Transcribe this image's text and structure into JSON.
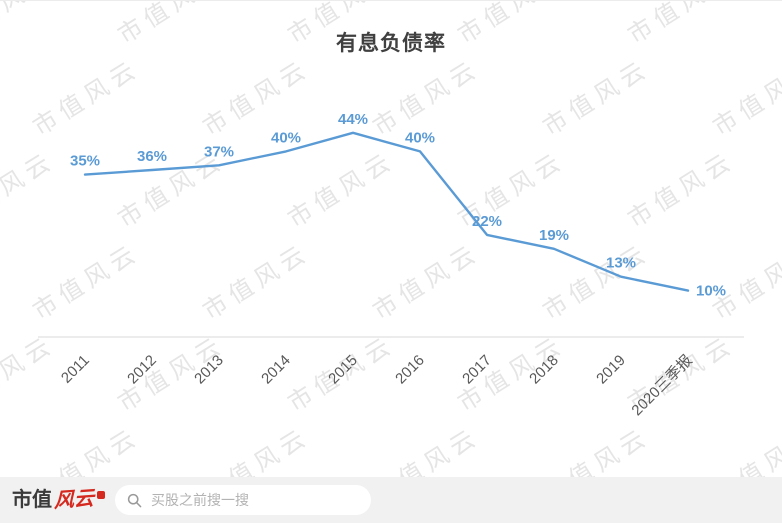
{
  "chart_data": {
    "type": "line",
    "title": "有息负债率",
    "categories": [
      "2011",
      "2012",
      "2013",
      "2014",
      "2015",
      "2016",
      "2017",
      "2018",
      "2019",
      "2020三季报"
    ],
    "values": [
      35,
      36,
      37,
      40,
      44,
      40,
      22,
      19,
      13,
      10
    ],
    "labels": [
      "35%",
      "36%",
      "37%",
      "40%",
      "44%",
      "40%",
      "22%",
      "19%",
      "13%",
      "10%"
    ],
    "xlabel": "",
    "ylabel": "",
    "ylim": [
      0,
      50
    ],
    "grid": false,
    "legend": "none",
    "line_color": "#5b9bd5",
    "point_label_color": "#5b9bd5",
    "axis_color": "#d9d9d9",
    "tick_label_color": "#595959"
  },
  "watermark": {
    "text": "市值风云",
    "color": "#e5e5e5"
  },
  "footer": {
    "logo_part1": "市值",
    "logo_part2": "风云",
    "search_placeholder": "买股之前搜一搜"
  }
}
